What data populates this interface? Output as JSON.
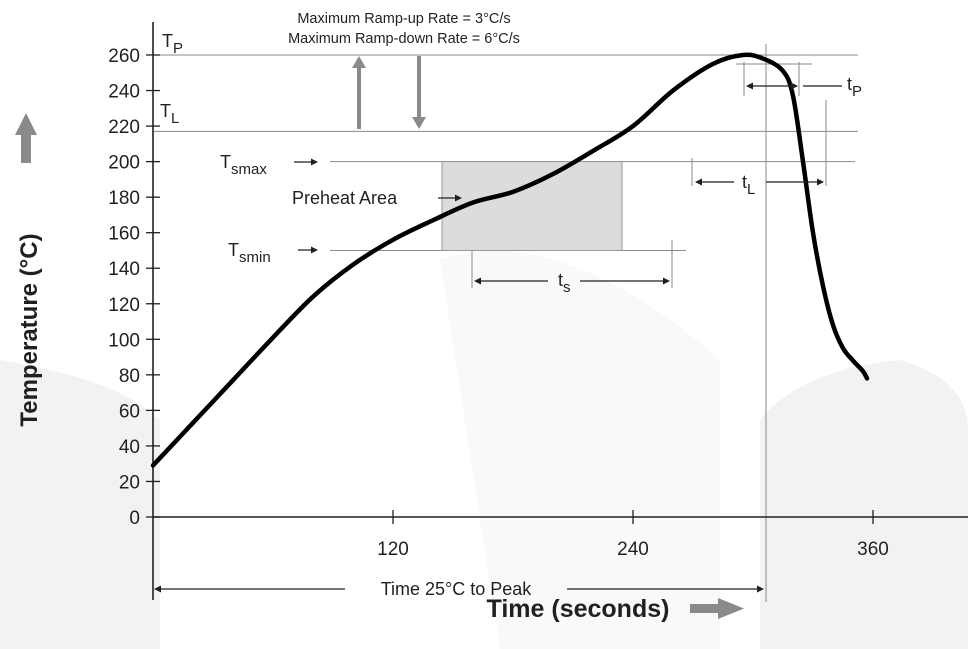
{
  "chart_data": {
    "type": "line",
    "xlabel": "Time (seconds)",
    "ylabel": "Temperature (°C)",
    "xlim": [
      0,
      360
    ],
    "ylim": [
      0,
      260
    ],
    "x_ticks": [
      120,
      240,
      360
    ],
    "y_ticks": [
      0,
      20,
      40,
      60,
      80,
      100,
      120,
      140,
      160,
      180,
      200,
      220,
      240,
      260
    ],
    "series": [
      {
        "x": [
          0,
          20,
          40,
          60,
          80,
          100,
          120,
          140,
          160,
          180,
          200,
          220,
          240,
          260,
          280,
          295,
          305,
          315,
          320,
          325,
          330,
          335,
          340,
          345,
          350,
          355,
          357
        ],
        "values": [
          29,
          53,
          77,
          101,
          124,
          142,
          156,
          167,
          177,
          183,
          193,
          206,
          220,
          240,
          255,
          260,
          258,
          251,
          237,
          200,
          160,
          130,
          108,
          95,
          88,
          82,
          78
        ]
      }
    ],
    "regions": [
      {
        "label": "Preheat Area",
        "x_range": [
          144,
          234
        ],
        "y_range": [
          150,
          200
        ]
      }
    ],
    "reference_lines": {
      "TP": 260,
      "TL": 217,
      "Tsmax": 200,
      "Tsmin": 150
    },
    "annotations": {
      "ramp_up": "Maximum Ramp-up Rate = 3°C/s",
      "ramp_down": "Maximum Ramp-down Rate = 6°C/s",
      "tp_label": "t",
      "tp_sub": "P",
      "TP_label": "T",
      "TP_sub": "P",
      "TL_label": "T",
      "TL_sub": "L",
      "Tsmax_label": "T",
      "Tsmax_sub": "smax",
      "Tsmin_label": "T",
      "Tsmin_sub": "smin",
      "preheat_label": "Preheat Area",
      "ts_label": "t",
      "ts_sub": "s",
      "tL_label": "t",
      "tL_sub": "L",
      "time_to_peak": "Time 25°C to Peak"
    }
  }
}
